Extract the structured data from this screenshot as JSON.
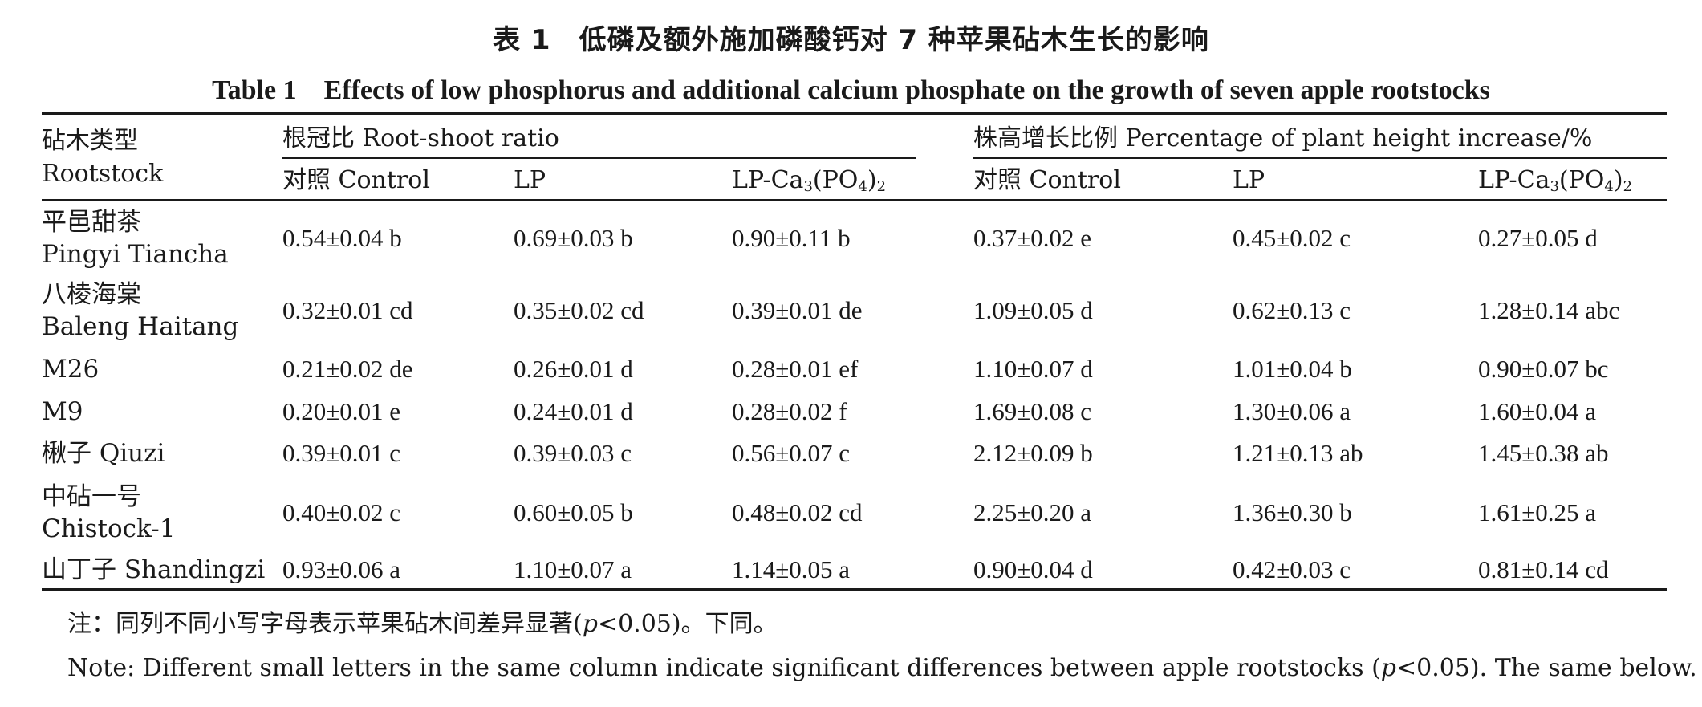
{
  "title_cn": "表 1　低磷及额外施加磷酸钙对 7 种苹果砧木生长的影响",
  "title_en": "Table 1　Effects of low phosphorus and additional calcium phosphate on the growth of seven apple rootstocks",
  "header": {
    "rootstock_cn": "砧木类型",
    "rootstock_en": "Rootstock",
    "group1": "根冠比 Root-shoot ratio",
    "group2": "株高增长比例 Percentage of plant height increase/%",
    "col_control": "对照 Control",
    "col_lp": "LP",
    "col_lpca_prefix": "LP-Ca",
    "col_lpca_sub1": "3",
    "col_lpca_mid": "(PO",
    "col_lpca_sub2": "4",
    "col_lpca_close": ")",
    "col_lpca_sub3": "2"
  },
  "rows": [
    {
      "name_cn": "平邑甜茶",
      "name_en": "Pingyi Tiancha",
      "v": [
        "0.54±0.04 b",
        "0.69±0.03 b",
        "0.90±0.11 b",
        "0.37±0.02 e",
        "0.45±0.02 c",
        "0.27±0.05 d"
      ]
    },
    {
      "name_cn": "八棱海棠",
      "name_en": "Baleng Haitang",
      "v": [
        "0.32±0.01 cd",
        "0.35±0.02 cd",
        "0.39±0.01 de",
        "1.09±0.05 d",
        "0.62±0.13 c",
        "1.28±0.14 abc"
      ]
    },
    {
      "name_cn": "M26",
      "name_en": "",
      "v": [
        "0.21±0.02 de",
        "0.26±0.01 d",
        "0.28±0.01 ef",
        "1.10±0.07 d",
        "1.01±0.04 b",
        "0.90±0.07 bc"
      ]
    },
    {
      "name_cn": "M9",
      "name_en": "",
      "v": [
        "0.20±0.01 e",
        "0.24±0.01 d",
        "0.28±0.02 f",
        "1.69±0.08 c",
        "1.30±0.06 a",
        "1.60±0.04 a"
      ]
    },
    {
      "name_cn": "楸子 Qiuzi",
      "name_en": "",
      "v": [
        "0.39±0.01 c",
        "0.39±0.03 c",
        "0.56±0.07 c",
        "2.12±0.09 b",
        "1.21±0.13 ab",
        "1.45±0.38 ab"
      ]
    },
    {
      "name_cn": "中砧一号",
      "name_en": "Chistock-1",
      "v": [
        "0.40±0.02 c",
        "0.60±0.05 b",
        "0.48±0.02 cd",
        "2.25±0.20 a",
        "1.36±0.30 b",
        "1.61±0.25 a"
      ]
    },
    {
      "name_cn": "山丁子 Shandingzi",
      "name_en": "",
      "v": [
        "0.93±0.06 a",
        "1.10±0.07 a",
        "1.14±0.05 a",
        "0.90±0.04 d",
        "0.42±0.03 c",
        "0.81±0.14 cd"
      ]
    }
  ],
  "notes": {
    "cn_prefix": "注：同列不同小写字母表示苹果砧木间差异显著(",
    "cn_p": "p",
    "cn_suffix": "<0.05)。下同。",
    "en_prefix": "Note: Different small letters in the same column indicate significant differences between apple rootstocks (",
    "en_p": "p",
    "en_suffix": "<0.05). The same below."
  }
}
